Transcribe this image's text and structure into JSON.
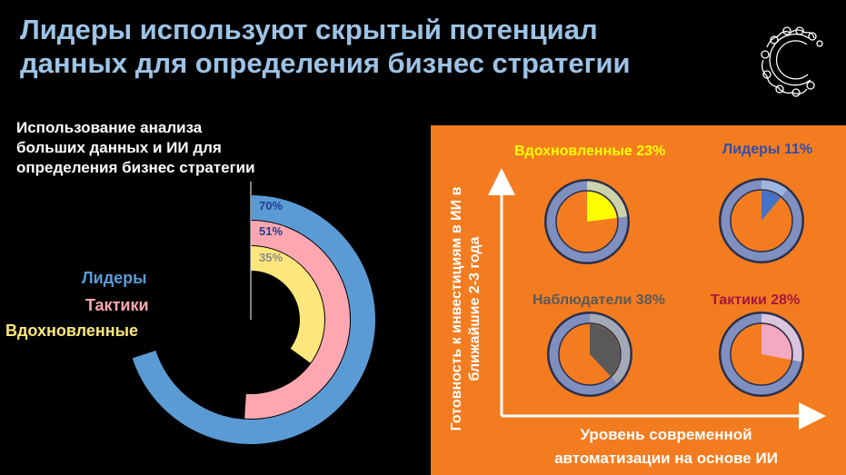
{
  "slide": {
    "title_line1": "Лидеры используют скрытый потенциал",
    "title_line2": "данных для определения бизнес стратегии"
  },
  "left_chart": {
    "title": "Использование анализа больших данных и ИИ для определения бизнес стратегии"
  },
  "right_panel": {
    "y_axis_label": "Готовность к инвестициям в ИИ в ближайшие 2-3 года",
    "x_axis_label": "Уровень современной автоматизации на основе ИИ"
  },
  "colors": {
    "leaders": "#5b9bd5",
    "tactics": "#ffa7b1",
    "inspired": "#fde77c",
    "panel": "#f47c20",
    "ring": "#7f8fbf",
    "inspired_pie": "#ffff00",
    "leaders_pie": "#4472c4",
    "observers_pie": "#595959",
    "tactics_pie": "#f4a8c4"
  },
  "chart_data": [
    {
      "type": "radial-bar",
      "title": "Использование анализа больших данных и ИИ для определения бизнес стратегии",
      "series": [
        {
          "name": "Лидеры",
          "value": 70,
          "label": "70%"
        },
        {
          "name": "Тактики",
          "value": 51,
          "label": "51%"
        },
        {
          "name": "Вдохновленные",
          "value": 35,
          "label": "35%"
        }
      ]
    },
    {
      "type": "pie",
      "quadrants": [
        {
          "name": "Вдохновленные",
          "value": 23,
          "label": "Вдохновленные 23%"
        },
        {
          "name": "Лидеры",
          "value": 11,
          "label": "Лидеры 11%"
        },
        {
          "name": "Наблюдатели",
          "value": 38,
          "label": "Наблюдатели 38%"
        },
        {
          "name": "Тактики",
          "value": 28,
          "label": "Тактики 28%"
        }
      ]
    }
  ]
}
